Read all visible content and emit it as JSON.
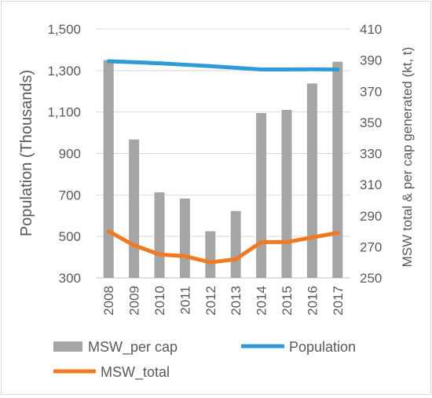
{
  "chart_data": {
    "type": "bar+line",
    "categories": [
      "2008",
      "2009",
      "2010",
      "2011",
      "2012",
      "2013",
      "2014",
      "2015",
      "2016",
      "2017"
    ],
    "y_left": {
      "label": "Population (Thousands)",
      "lim": [
        300,
        1500
      ],
      "ticks": [
        "300",
        "500",
        "700",
        "900",
        "1,100",
        "1,300",
        "1,500"
      ],
      "tick_values": [
        300,
        500,
        700,
        900,
        1100,
        1300,
        1500
      ]
    },
    "y_right": {
      "label": "MSW total & per cap generated (kt, t)",
      "lim": [
        250,
        410
      ],
      "ticks": [
        "250",
        "270",
        "290",
        "310",
        "330",
        "350",
        "370",
        "390",
        "410"
      ],
      "tick_values": [
        250,
        270,
        290,
        310,
        330,
        350,
        370,
        390,
        410
      ]
    },
    "series": [
      {
        "name": "MSW_per cap",
        "type": "bar",
        "axis": "right",
        "color": "#a5a5a5",
        "values": [
          390,
          339,
          305,
          301,
          280,
          293,
          356,
          358,
          375,
          389
        ]
      },
      {
        "name": "Population",
        "type": "line",
        "axis": "left",
        "color": "#2e9bd6",
        "values": [
          1345,
          1340,
          1335,
          1328,
          1321,
          1313,
          1305,
          1305,
          1306,
          1305
        ]
      },
      {
        "name": "MSW_total",
        "type": "line",
        "axis": "right",
        "color": "#f07a22",
        "values": [
          280,
          271,
          265,
          264,
          260,
          262,
          273,
          273,
          276,
          279
        ]
      }
    ],
    "legend": {
      "position": "bottom",
      "items": [
        "MSW_per cap",
        "Population",
        "MSW_total"
      ]
    },
    "grid": true
  }
}
